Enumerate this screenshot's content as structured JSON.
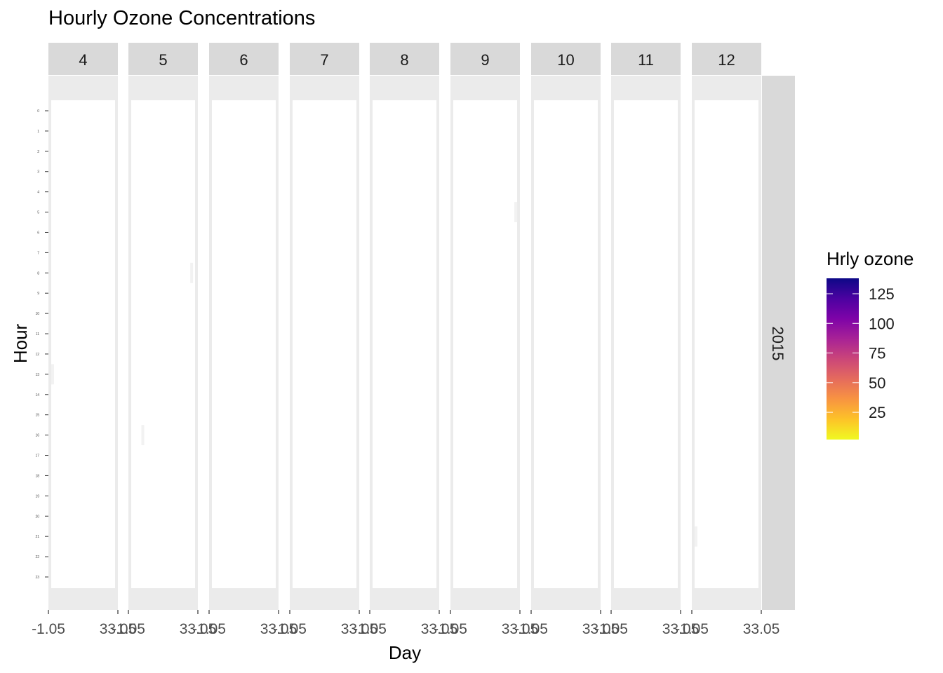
{
  "chart_data": {
    "type": "heatmap",
    "title": "Hourly Ozone Concentrations",
    "xlabel": "Day",
    "ylabel": "Hour",
    "facet_rows": [
      "2015"
    ],
    "facet_cols": [
      "4",
      "5",
      "6",
      "7",
      "8",
      "9",
      "10",
      "11",
      "12"
    ],
    "x_tick_labels": [
      "-1.05",
      "33.05"
    ],
    "xlim": [
      -1.05,
      33.05
    ],
    "y_tick_labels": [
      "0",
      "1",
      "2",
      "3",
      "4",
      "5",
      "6",
      "7",
      "8",
      "9",
      "10",
      "11",
      "12",
      "13",
      "14",
      "15",
      "16",
      "17",
      "18",
      "19",
      "20",
      "21",
      "22",
      "23"
    ],
    "grid": false,
    "legend": {
      "title": "Hrly ozone",
      "position": "right",
      "breaks": [
        25,
        50,
        75,
        100,
        125
      ],
      "range": [
        2,
        138
      ],
      "colors": [
        "#F0F921",
        "#FDC328",
        "#F89441",
        "#E56B5D",
        "#CB4679",
        "#A82296",
        "#7E03A8",
        "#4C02A1",
        "#0D0887"
      ]
    },
    "cells": [
      {
        "month": "4",
        "day": 1,
        "hour": 13,
        "value": null
      },
      {
        "month": "5",
        "day": 30,
        "hour": 8,
        "value": null
      },
      {
        "month": "5",
        "day": 6,
        "hour": 16,
        "value": null
      },
      {
        "month": "9",
        "day": 31,
        "hour": 5,
        "value": null
      },
      {
        "month": "12",
        "day": 1,
        "hour": 21,
        "value": null
      }
    ]
  }
}
